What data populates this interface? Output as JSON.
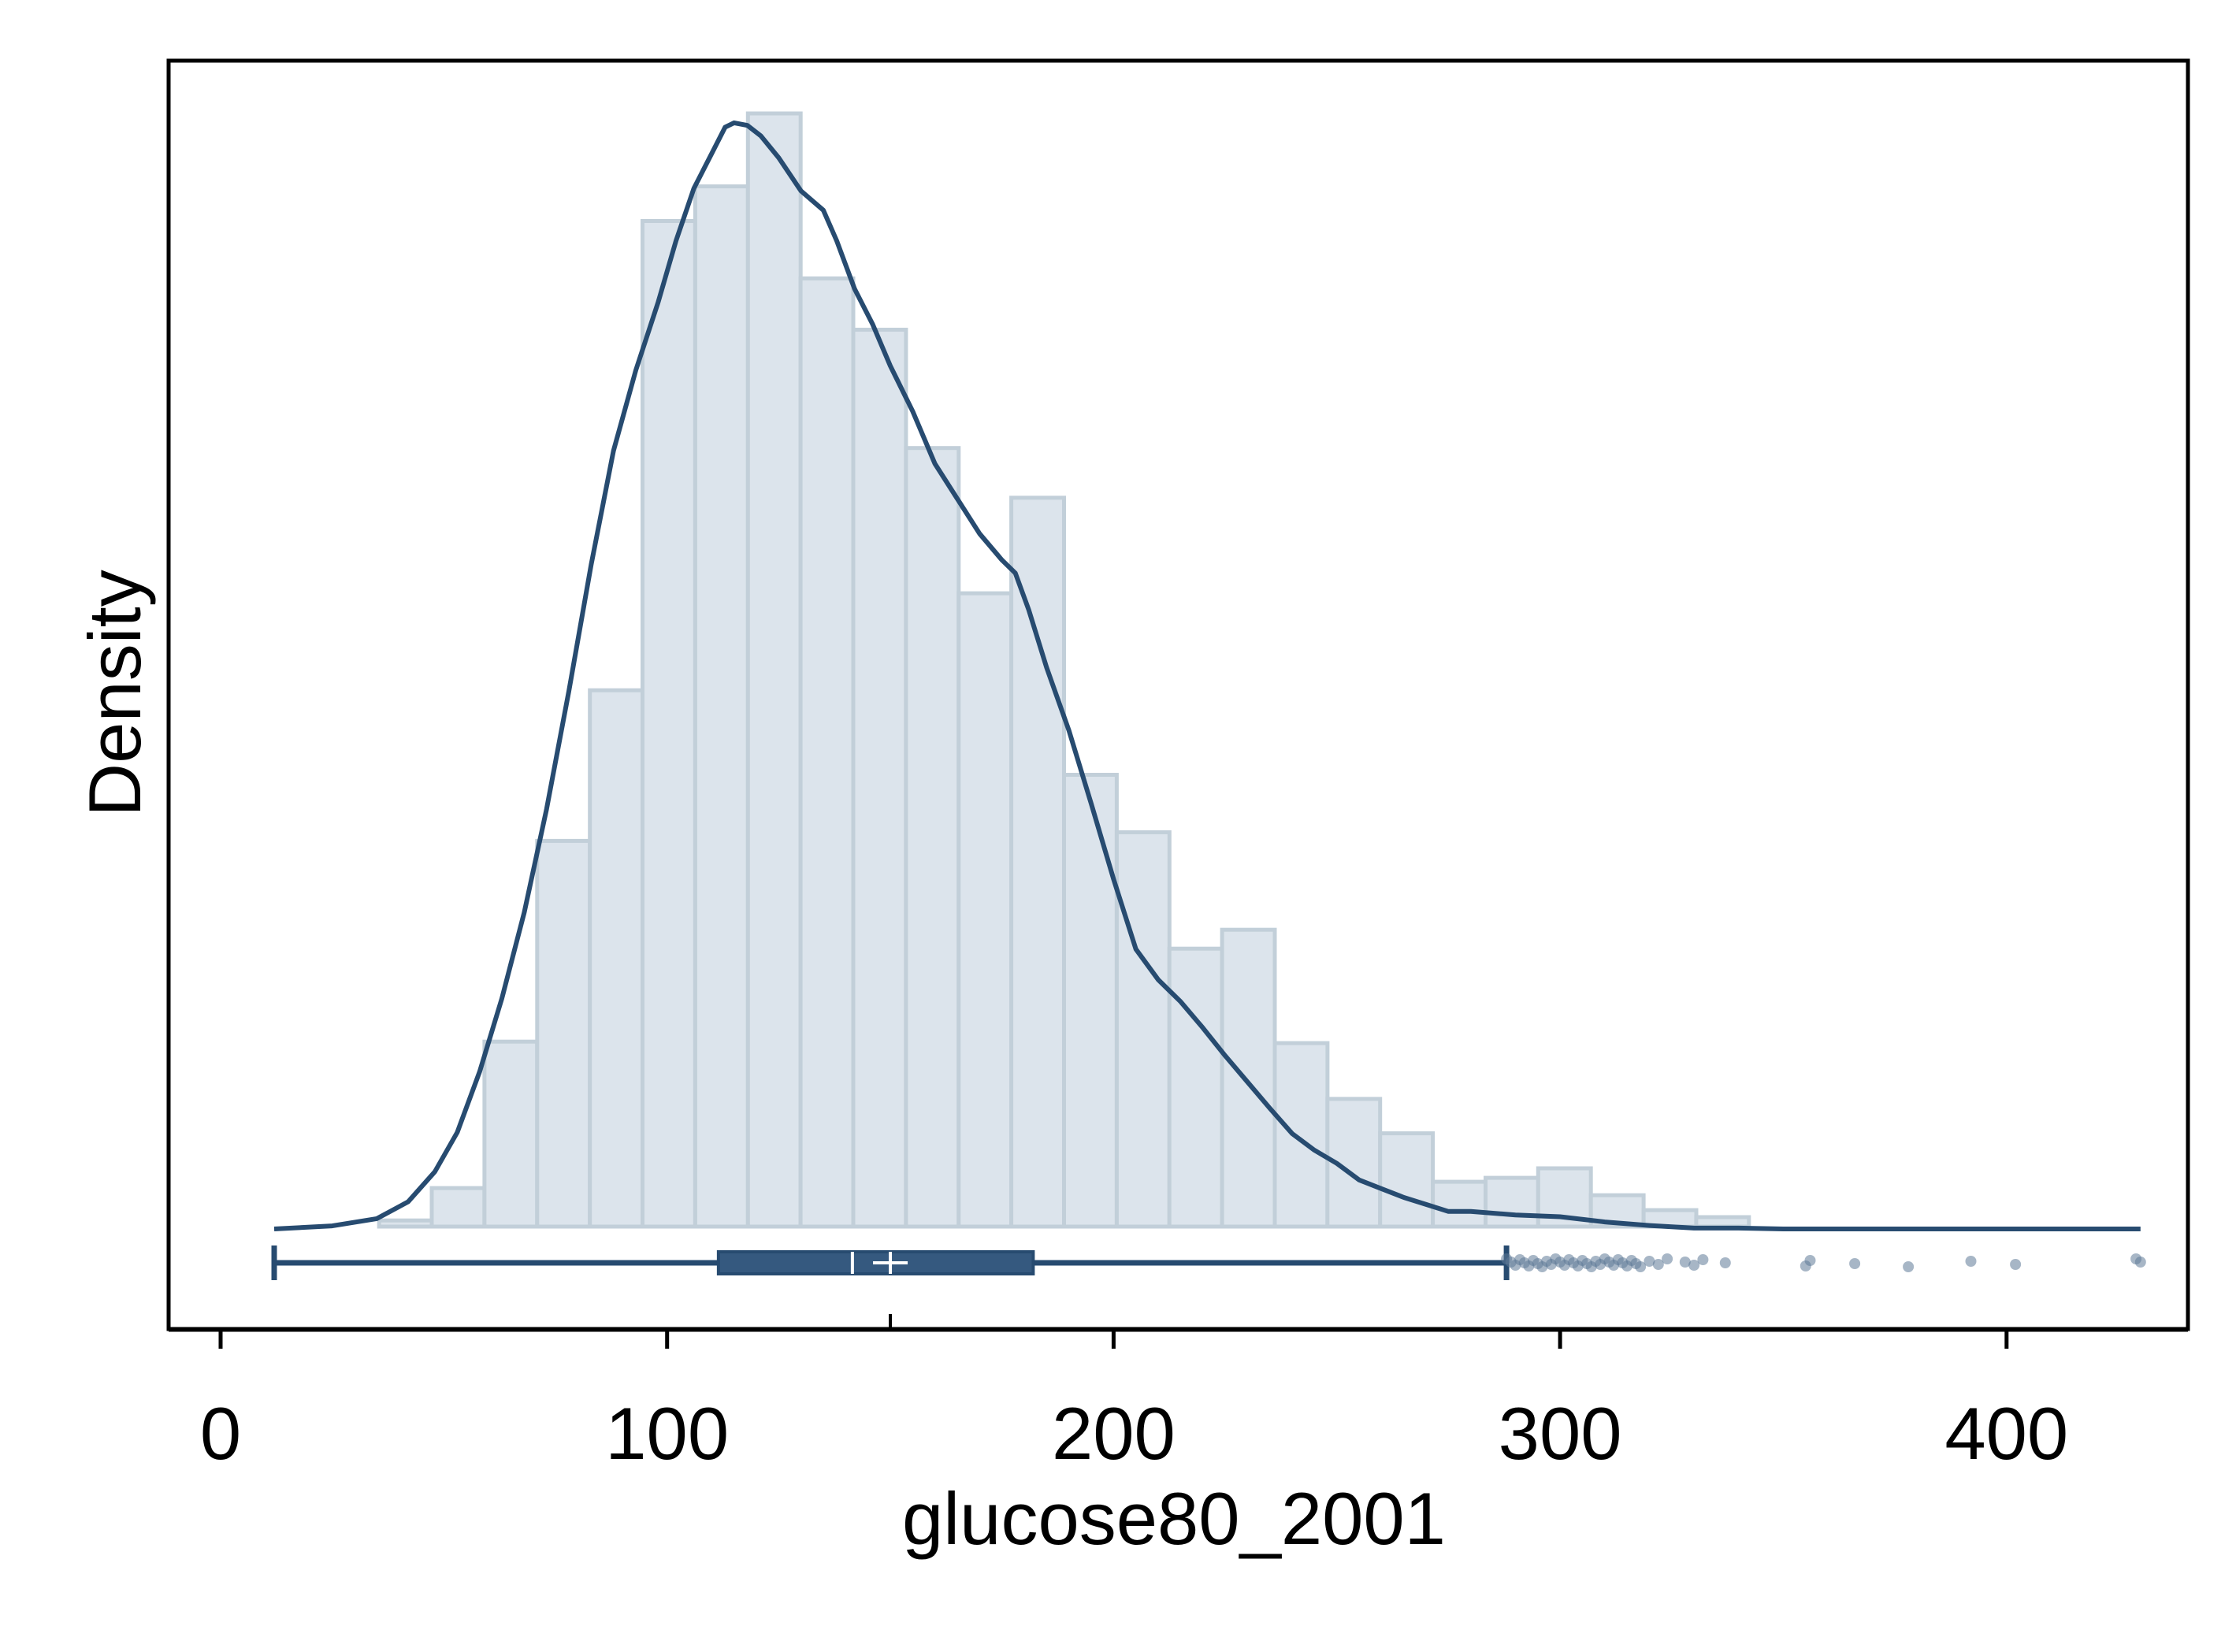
{
  "chart_data": {
    "type": "histogram",
    "xlabel": "glucose80_2001",
    "ylabel": "Density",
    "xlim": [
      -10,
      440
    ],
    "x_ticks": [
      0,
      100,
      200,
      300,
      400
    ],
    "y_ticks_labeled": false,
    "grid": false,
    "legend": "none",
    "histogram": {
      "bin_width": 11.8,
      "bins": [
        {
          "start": 35.5,
          "density": 0.0055
        },
        {
          "start": 47.3,
          "density": 0.0346
        },
        {
          "start": 59.1,
          "density": 0.1662
        },
        {
          "start": 70.9,
          "density": 0.3465
        },
        {
          "start": 82.7,
          "density": 0.4818
        },
        {
          "start": 94.5,
          "density": 0.9034
        },
        {
          "start": 106.3,
          "density": 0.9345
        },
        {
          "start": 118.1,
          "density": 1.0
        },
        {
          "start": 129.9,
          "density": 0.8518
        },
        {
          "start": 141.7,
          "density": 0.8057
        },
        {
          "start": 153.5,
          "density": 0.6994
        },
        {
          "start": 165.3,
          "density": 0.5689
        },
        {
          "start": 177.1,
          "density": 0.6548
        },
        {
          "start": 188.9,
          "density": 0.4059
        },
        {
          "start": 200.7,
          "density": 0.3543
        },
        {
          "start": 212.5,
          "density": 0.2497
        },
        {
          "start": 224.3,
          "density": 0.2667
        },
        {
          "start": 236.1,
          "density": 0.1648
        },
        {
          "start": 247.9,
          "density": 0.1147
        },
        {
          "start": 259.7,
          "density": 0.0838
        },
        {
          "start": 271.5,
          "density": 0.0403
        },
        {
          "start": 283.3,
          "density": 0.0438
        },
        {
          "start": 295.1,
          "density": 0.0524
        },
        {
          "start": 306.9,
          "density": 0.0282
        },
        {
          "start": 318.7,
          "density": 0.0148
        },
        {
          "start": 330.5,
          "density": 0.0085
        }
      ]
    },
    "kde": {
      "x": [
        12,
        25,
        35,
        42,
        48,
        53,
        58,
        63,
        68,
        73,
        78,
        83,
        88,
        93,
        98,
        102,
        106,
        110,
        113,
        115,
        118,
        121,
        125,
        130,
        135,
        138,
        142,
        146,
        150,
        155,
        160,
        165,
        170,
        175,
        178,
        181,
        185,
        190,
        195,
        200,
        205,
        210,
        215,
        220,
        225,
        230,
        235,
        240,
        245,
        250,
        255,
        260,
        265,
        270,
        275,
        280,
        290,
        300,
        310,
        320,
        330,
        340,
        350,
        360,
        380,
        400,
        415,
        430
      ],
      "y": [
        0.0,
        0.0035,
        0.0118,
        0.0311,
        0.0656,
        0.1105,
        0.1796,
        0.2636,
        0.362,
        0.48,
        0.615,
        0.76,
        0.89,
        0.982,
        1.06,
        1.13,
        1.19,
        1.23,
        1.26,
        1.265,
        1.262,
        1.25,
        1.225,
        1.187,
        1.165,
        1.13,
        1.075,
        1.035,
        0.987,
        0.935,
        0.875,
        0.835,
        0.795,
        0.765,
        0.75,
        0.708,
        0.642,
        0.57,
        0.486,
        0.4,
        0.32,
        0.285,
        0.26,
        0.23,
        0.198,
        0.168,
        0.138,
        0.109,
        0.09,
        0.075,
        0.056,
        0.046,
        0.036,
        0.028,
        0.02,
        0.02,
        0.016,
        0.014,
        0.008,
        0.004,
        0.001,
        0.001,
        0.0,
        0.0,
        0.0,
        0.0,
        0.0,
        0.0
      ]
    },
    "boxplot": {
      "whisker_low": 12,
      "q1": 111.5,
      "median": 141.5,
      "mean": 150,
      "q3": 182,
      "whisker_high": 288,
      "outliers": [
        288,
        289,
        290,
        291,
        292,
        293,
        294,
        295,
        296,
        297,
        298,
        299,
        300,
        301,
        302,
        303,
        304,
        305,
        306,
        307,
        308,
        309,
        310,
        311,
        312,
        313,
        314,
        315,
        316,
        317,
        318,
        320,
        322,
        324,
        328,
        330,
        332,
        337,
        355,
        356,
        366,
        378,
        392,
        402,
        429,
        430
      ]
    },
    "colors": {
      "bar_fill": "#dce4ec",
      "bar_edge": "#c2cfd9",
      "line": "#274b70",
      "box_fill": "#35597f",
      "outlier": "#5e7a98"
    }
  }
}
